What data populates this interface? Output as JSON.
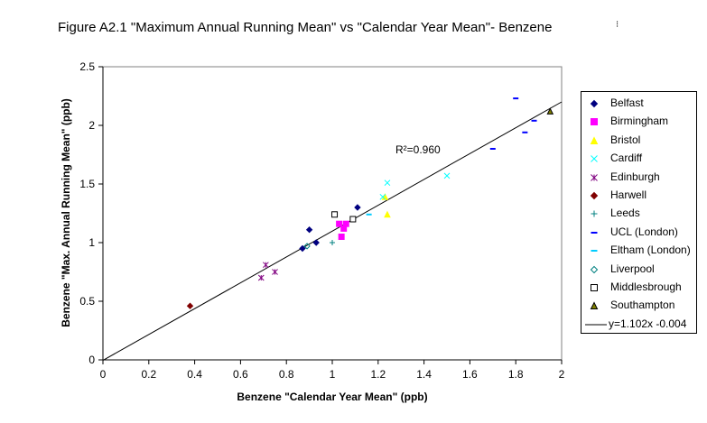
{
  "chart_data": {
    "type": "scatter",
    "title": "Figure A2.1  \"Maximum Annual Running Mean\" vs  \"Calendar Year Mean\"- Benzene",
    "title_mark": "⁝",
    "xlabel": "Benzene \"Calendar Year Mean\" (ppb)",
    "ylabel": "Benzene \"Max. Annual Running Mean\" (ppb)",
    "xlim": [
      0,
      2
    ],
    "ylim": [
      0,
      2.5
    ],
    "x_ticks": [
      "0",
      "0.2",
      "0.4",
      "0.6",
      "0.8",
      "1",
      "1.2",
      "1.4",
      "1.6",
      "1.8",
      "2"
    ],
    "y_ticks": [
      "0",
      "0.5",
      "1",
      "1.5",
      "2",
      "2.5"
    ],
    "legend_position": "right",
    "annotation": "R²=0.960",
    "series": [
      {
        "name": "Belfast",
        "marker": "diamond",
        "color": "#000080",
        "points": [
          [
            0.87,
            0.95
          ],
          [
            0.9,
            1.11
          ],
          [
            0.93,
            1.0
          ],
          [
            1.11,
            1.3
          ]
        ]
      },
      {
        "name": "Birmingham",
        "marker": "square",
        "color": "#FF00FF",
        "points": [
          [
            1.03,
            1.16
          ],
          [
            1.04,
            1.05
          ],
          [
            1.05,
            1.12
          ],
          [
            1.06,
            1.16
          ]
        ]
      },
      {
        "name": "Bristol",
        "marker": "triangle",
        "color": "#FFFF00",
        "points": [
          [
            1.23,
            1.39
          ],
          [
            1.24,
            1.24
          ]
        ]
      },
      {
        "name": "Cardiff",
        "marker": "x",
        "color": "#00FFFF",
        "points": [
          [
            1.22,
            1.39
          ],
          [
            1.24,
            1.51
          ],
          [
            1.5,
            1.57
          ]
        ]
      },
      {
        "name": "Edinburgh",
        "marker": "star",
        "color": "#800080",
        "points": [
          [
            0.69,
            0.7
          ],
          [
            0.71,
            0.81
          ],
          [
            0.75,
            0.75
          ]
        ]
      },
      {
        "name": "Harwell",
        "marker": "diamond",
        "color": "#800000",
        "points": [
          [
            0.38,
            0.46
          ]
        ]
      },
      {
        "name": "Leeds",
        "marker": "plus",
        "color": "#008080",
        "points": [
          [
            1.0,
            1.0
          ]
        ]
      },
      {
        "name": "UCL (London)",
        "marker": "dash",
        "color": "#0000FF",
        "points": [
          [
            1.7,
            1.8
          ],
          [
            1.84,
            1.94
          ],
          [
            1.88,
            2.04
          ],
          [
            1.8,
            2.23
          ]
        ]
      },
      {
        "name": "Eltham (London)",
        "marker": "dash",
        "color": "#00CCFF",
        "points": [
          [
            1.16,
            1.24
          ]
        ]
      },
      {
        "name": "Liverpool",
        "marker": "open-diamond",
        "color": "#008080",
        "points": [
          [
            0.89,
            0.97
          ]
        ]
      },
      {
        "name": "Middlesbrough",
        "marker": "open-square",
        "color": "#000000",
        "points": [
          [
            1.01,
            1.24
          ],
          [
            1.09,
            1.2
          ]
        ]
      },
      {
        "name": "Southampton",
        "marker": "open-triangle",
        "color": "#808000",
        "points": [
          [
            1.95,
            2.12
          ]
        ]
      }
    ],
    "trendline": {
      "name": "y=1.102x -0.004",
      "slope": 1.102,
      "intercept": -0.004,
      "x_range": [
        0,
        2
      ],
      "color": "#000000"
    }
  }
}
